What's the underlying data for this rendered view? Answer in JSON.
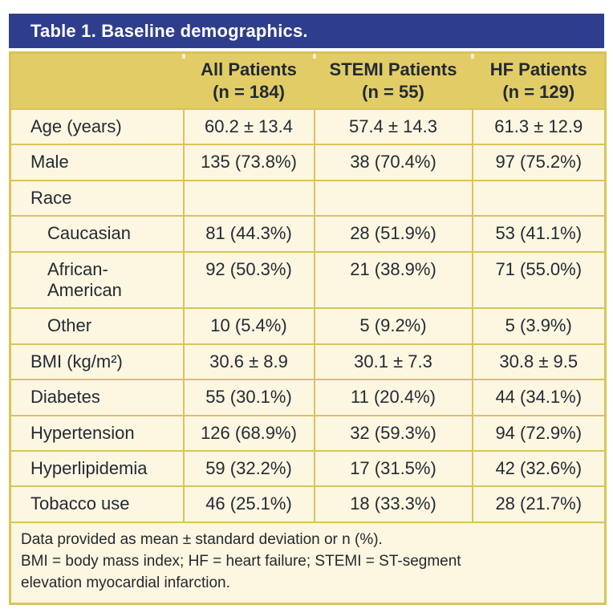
{
  "title": "Table 1. Baseline demographics.",
  "colors": {
    "title_bar_blue": "#2f3e8c",
    "header_gold": "#e2cc66",
    "row_cream": "#fdf6e1",
    "border_gold": "#d9c45a",
    "text_dark": "#232b34",
    "title_text": "#ffffff"
  },
  "header": {
    "columns": [
      {
        "name": "All Patients",
        "n": "(n = 184)"
      },
      {
        "name": "STEMI Patients",
        "n": "(n = 55)"
      },
      {
        "name": "HF Patients",
        "n": "(n = 129)"
      }
    ]
  },
  "rows": [
    {
      "label": "Age (years)",
      "values": [
        "60.2 ± 13.4",
        "57.4 ± 14.3",
        "61.3 ± 12.9"
      ]
    },
    {
      "label": "Male",
      "values": [
        "135 (73.8%)",
        "38 (70.4%)",
        "97 (75.2%)"
      ]
    },
    {
      "label": "Race",
      "values": [
        "",
        "",
        ""
      ]
    },
    {
      "label": "Caucasian",
      "values": [
        "81 (44.3%)",
        "28 (51.9%)",
        "53 (41.1%)"
      ]
    },
    {
      "label": "African-\nAmerican",
      "values": [
        "92 (50.3%)",
        "21 (38.9%)",
        "71 (55.0%)"
      ]
    },
    {
      "label": "Other",
      "values": [
        "10 (5.4%)",
        "5 (9.2%)",
        "5 (3.9%)"
      ]
    },
    {
      "label": "BMI (kg/m²)",
      "values": [
        "30.6 ± 8.9",
        "30.1 ± 7.3",
        "30.8 ± 9.5"
      ]
    },
    {
      "label": "Diabetes",
      "values": [
        "55 (30.1%)",
        "11 (20.4%)",
        "44 (34.1%)"
      ]
    },
    {
      "label": "Hypertension",
      "values": [
        "126 (68.9%)",
        "32 (59.3%)",
        "94 (72.9%)"
      ]
    },
    {
      "label": "Hyperlipidemia",
      "values": [
        "59 (32.2%)",
        "17 (31.5%)",
        "42 (32.6%)"
      ]
    },
    {
      "label": "Tobacco use",
      "values": [
        "46 (25.1%)",
        "18 (33.3%)",
        "28 (21.7%)"
      ]
    }
  ],
  "footnote": {
    "line1": "Data provided as mean ± standard deviation or n (%).",
    "line2": "BMI = body mass index; HF = heart failure; STEMI = ST-segment",
    "line3": "elevation myocardial infarction."
  }
}
